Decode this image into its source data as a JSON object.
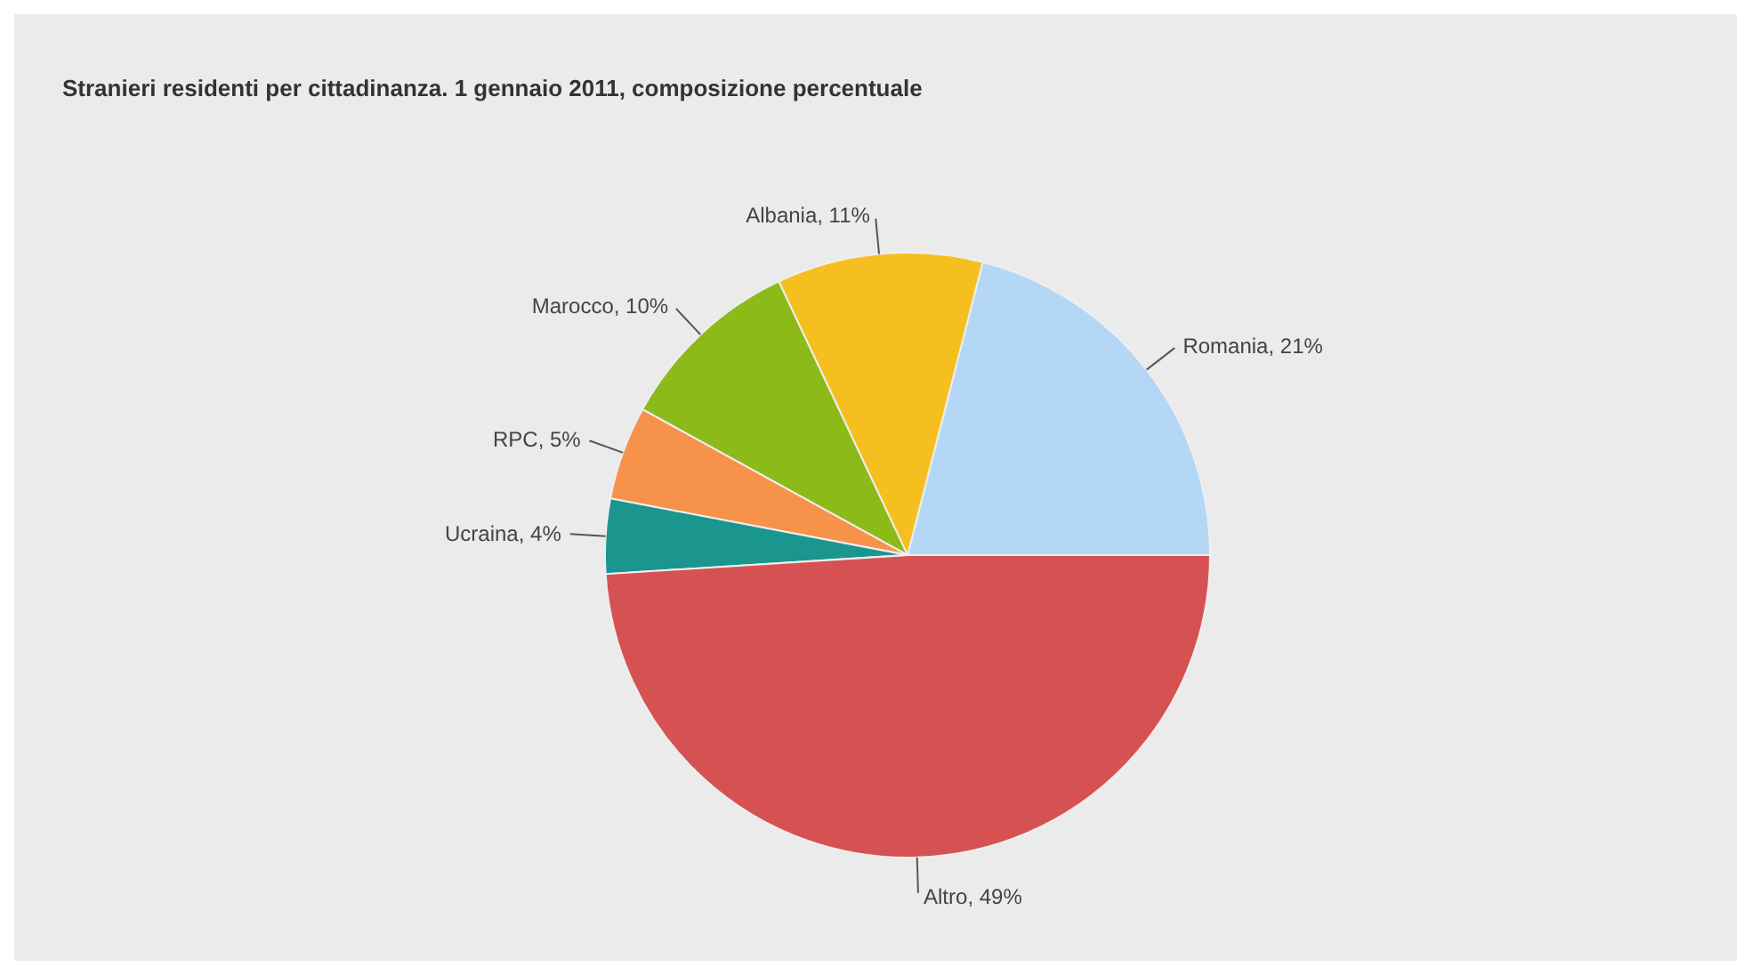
{
  "chart_data": {
    "type": "pie",
    "title": "Stranieri residenti per cittadinanza. 1 gennaio 2011, composizione percentuale",
    "categories": [
      "Romania",
      "Albania",
      "Marocco",
      "RPC",
      "Ucraina",
      "Altro"
    ],
    "values": [
      21,
      11,
      10,
      5,
      4,
      49
    ],
    "value_labels": [
      "21%",
      "11%",
      "10%",
      "5%",
      "4%",
      "49%"
    ],
    "colors": [
      "#b3d7f5",
      "#f5c01f",
      "#8cba19",
      "#f7924a",
      "#1a968f",
      "#d65252"
    ],
    "legend": false
  }
}
